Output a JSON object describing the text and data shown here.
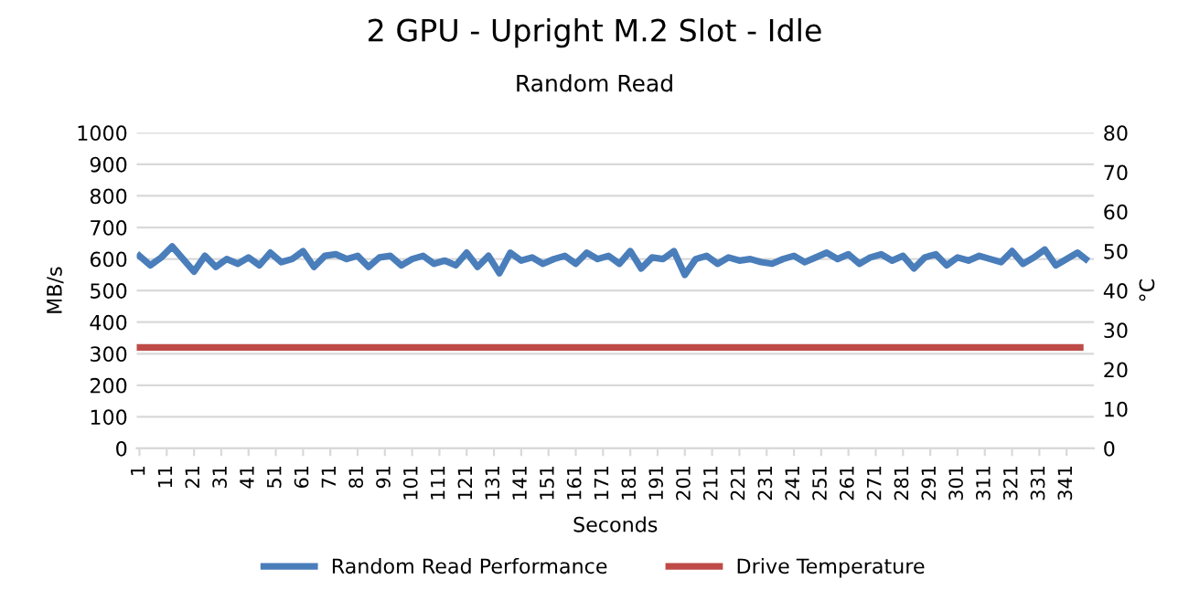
{
  "chart_data": {
    "type": "line",
    "title": "2 GPU - Upright M.2 Slot - Idle",
    "subtitle": "Random Read",
    "xlabel": "Seconds",
    "ylabel": "MB/s",
    "y2label": "°C",
    "xlim": [
      0,
      351
    ],
    "xticks": [
      1,
      11,
      21,
      31,
      41,
      51,
      61,
      71,
      81,
      91,
      101,
      111,
      121,
      131,
      141,
      151,
      161,
      171,
      181,
      191,
      201,
      211,
      221,
      231,
      241,
      251,
      261,
      271,
      281,
      291,
      301,
      311,
      321,
      331,
      341
    ],
    "ylim": [
      0,
      1000
    ],
    "yticks": [
      0,
      100,
      200,
      300,
      400,
      500,
      600,
      700,
      800,
      900,
      1000
    ],
    "y2lim": [
      0,
      80
    ],
    "y2ticks": [
      0,
      10,
      20,
      30,
      40,
      50,
      60,
      70,
      80
    ],
    "grid": "y",
    "legend": "bottom",
    "marker": "none",
    "line_style": "solid",
    "series": [
      {
        "name": "Random Read Performance",
        "color": "#4a7ebb",
        "x": [
          1,
          5,
          9,
          13,
          17,
          21,
          25,
          29,
          33,
          37,
          41,
          45,
          49,
          53,
          57,
          61,
          65,
          69,
          73,
          77,
          81,
          85,
          89,
          93,
          97,
          101,
          105,
          109,
          113,
          117,
          121,
          125,
          129,
          133,
          137,
          141,
          145,
          149,
          153,
          157,
          161,
          165,
          169,
          173,
          177,
          181,
          185,
          189,
          193,
          197,
          201,
          205,
          209,
          213,
          217,
          221,
          225,
          229,
          233,
          237,
          241,
          245,
          249,
          253,
          257,
          261,
          265,
          269,
          273,
          277,
          281,
          285,
          289,
          293,
          297,
          301,
          305,
          309,
          313,
          317,
          321,
          325,
          329,
          333,
          337,
          341,
          345,
          348
        ],
        "values": [
          610,
          580,
          605,
          640,
          600,
          560,
          610,
          575,
          600,
          585,
          605,
          580,
          620,
          590,
          600,
          625,
          575,
          610,
          615,
          600,
          610,
          575,
          605,
          610,
          580,
          600,
          610,
          585,
          595,
          580,
          620,
          575,
          610,
          555,
          620,
          595,
          605,
          585,
          600,
          610,
          585,
          620,
          600,
          610,
          585,
          625,
          570,
          605,
          600,
          625,
          550,
          600,
          610,
          585,
          605,
          595,
          600,
          590,
          585,
          600,
          610,
          590,
          605,
          620,
          600,
          615,
          585,
          605,
          615,
          595,
          610,
          570,
          605,
          615,
          580,
          605,
          595,
          610,
          600,
          590,
          625,
          585,
          605,
          630,
          580,
          600,
          620,
          600
        ]
      },
      {
        "name": "Drive Temperature",
        "color": "#be4b48",
        "axis": "y2",
        "x": [
          1,
          346
        ],
        "values": [
          25.6,
          25.6
        ]
      }
    ]
  }
}
